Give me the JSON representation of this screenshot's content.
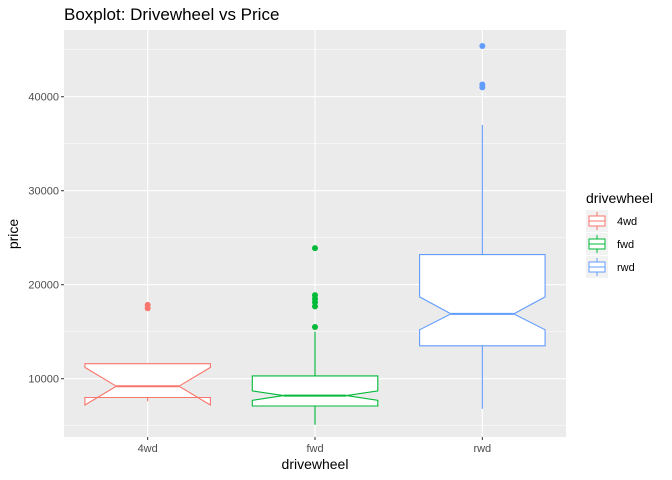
{
  "chart_data": {
    "type": "boxplot",
    "title": "Boxplot: Drivewheel vs Price",
    "xlabel": "drivewheel",
    "ylabel": "price",
    "categories": [
      "4wd",
      "fwd",
      "rwd"
    ],
    "ylim": [
      3800,
      47100
    ],
    "yticks": [
      10000,
      20000,
      30000,
      40000
    ],
    "ytick_labels": [
      "10000",
      "20000",
      "30000",
      "40000"
    ],
    "grid": true,
    "notched": true,
    "legend": {
      "title": "drivewheel",
      "placement": "right",
      "entries": [
        "4wd",
        "fwd",
        "rwd"
      ]
    },
    "series": [
      {
        "name": "4wd",
        "color": "#F8766D",
        "whisker_low": 7600,
        "q1": 8000,
        "median": 9200,
        "q3": 11600,
        "whisker_high": 11600,
        "notch_low": 7200,
        "notch_high": 11200,
        "outliers": [
          17500,
          17850
        ]
      },
      {
        "name": "fwd",
        "color": "#00BA38",
        "whisker_low": 5100,
        "q1": 7100,
        "median": 8200,
        "q3": 10300,
        "whisker_high": 15000,
        "notch_low": 7700,
        "notch_high": 8700,
        "outliers": [
          15500,
          17700,
          18150,
          18500,
          18900,
          23900
        ]
      },
      {
        "name": "rwd",
        "color": "#619CFF",
        "whisker_low": 6800,
        "q1": 13500,
        "median": 16900,
        "q3": 23200,
        "whisker_high": 37000,
        "notch_low": 15200,
        "notch_high": 18700,
        "outliers": [
          41000,
          41300,
          45400
        ]
      }
    ]
  }
}
